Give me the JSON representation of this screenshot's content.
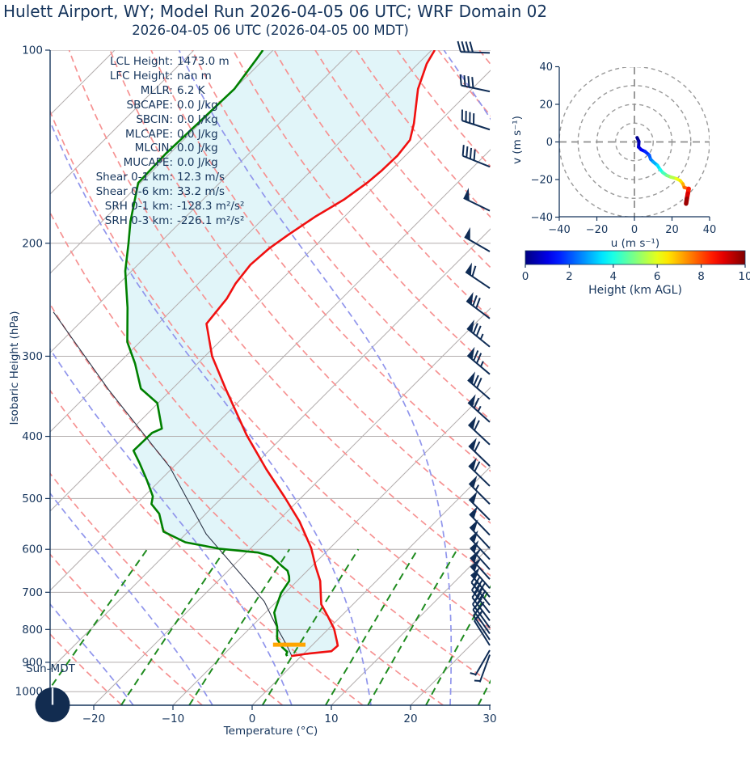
{
  "title": "Hulett Airport, WY; Model Run 2026-04-05 06 UTC; WRF Domain 02",
  "subtitle": "2026-04-05 06 UTC  (2026-04-05 00 MDT)",
  "sun_dial": {
    "label": "Sun-MDT",
    "hand_angle_deg": 0
  },
  "colors": {
    "text_navy": "#16355c",
    "barb_navy": "#0f2c55",
    "temperature": "#f01010",
    "dewpoint": "#008000",
    "parcel": "#2b3345",
    "fill_between": "rgba(175,228,238,0.38)",
    "isotherm_gray": "#b3aeae",
    "dry_adiabat": "#f69292",
    "moist_adiabat": "#9095ec",
    "mixing_ratio": "#1f8b1f",
    "lcl_marker": "#ffa500",
    "hodo_ring": "#9a9a9a",
    "sun_circle": "#122c50"
  },
  "chart_data": [
    {
      "type": "skewt-logp",
      "xlabel": "Temperature (°C)",
      "ylabel": "Isobaric Height (hPa)",
      "xlim": [
        -25.6,
        30
      ],
      "pressure_lim": [
        100,
        1050
      ],
      "xticks": [
        -20,
        -10,
        0,
        10,
        20,
        30
      ],
      "yticks": [
        100,
        200,
        300,
        400,
        500,
        600,
        700,
        800,
        900,
        1000
      ],
      "grid": true,
      "isotherms_degC": {
        "from": -120,
        "to": 40,
        "step": 10
      },
      "dry_adiabats_thetaC": {
        "from": -30,
        "to": 160,
        "step": 10
      },
      "moist_adiabats_startC": {
        "from": -45,
        "to": 45,
        "step": 10
      },
      "mixing_ratios_gkg": [
        0.4,
        1,
        2,
        4,
        7,
        10,
        16,
        24,
        32
      ],
      "mixing_ratio_top_hPa": 600,
      "temperature_profile_p_T": [
        [
          100,
          -59.6
        ],
        [
          105,
          -58.9
        ],
        [
          115,
          -56.8
        ],
        [
          130,
          -53.0
        ],
        [
          138,
          -51.4
        ],
        [
          146,
          -51.0
        ],
        [
          154,
          -51.1
        ],
        [
          161,
          -51.4
        ],
        [
          171,
          -52.2
        ],
        [
          182,
          -53.7
        ],
        [
          194,
          -54.8
        ],
        [
          204,
          -55.5
        ],
        [
          216,
          -55.8
        ],
        [
          231,
          -55.3
        ],
        [
          244,
          -54.5
        ],
        [
          267,
          -53.9
        ],
        [
          300,
          -49.1
        ],
        [
          337,
          -43.3
        ],
        [
          398,
          -34.8
        ],
        [
          450,
          -28.0
        ],
        [
          498,
          -22.1
        ],
        [
          543,
          -17.2
        ],
        [
          597,
          -12.4
        ],
        [
          638,
          -9.5
        ],
        [
          672,
          -7.1
        ],
        [
          731,
          -4.0
        ],
        [
          764,
          -1.6
        ],
        [
          798,
          0.7
        ],
        [
          836,
          2.7
        ],
        [
          848,
          3.3
        ],
        [
          865,
          3.2
        ],
        [
          873,
          0.4
        ],
        [
          880,
          -1.3
        ]
      ],
      "dewpoint_profile_p_Td": [
        [
          100,
          -81.3
        ],
        [
          103,
          -81.0
        ],
        [
          115,
          -80.0
        ],
        [
          145,
          -80.5
        ],
        [
          161,
          -80.3
        ],
        [
          185,
          -76.4
        ],
        [
          200,
          -73.9
        ],
        [
          221,
          -70.8
        ],
        [
          252,
          -65.9
        ],
        [
          285,
          -61.6
        ],
        [
          308,
          -57.9
        ],
        [
          337,
          -54.0
        ],
        [
          355,
          -50.1
        ],
        [
          389,
          -46.3
        ],
        [
          395,
          -47.0
        ],
        [
          421,
          -47.1
        ],
        [
          440,
          -44.8
        ],
        [
          468,
          -41.7
        ],
        [
          496,
          -38.9
        ],
        [
          510,
          -38.1
        ],
        [
          528,
          -35.9
        ],
        [
          563,
          -33.1
        ],
        [
          585,
          -29.0
        ],
        [
          599,
          -23.8
        ],
        [
          607,
          -18.5
        ],
        [
          615,
          -16.4
        ],
        [
          638,
          -13.7
        ],
        [
          648,
          -12.5
        ],
        [
          661,
          -11.6
        ],
        [
          672,
          -11.0
        ],
        [
          702,
          -10.5
        ],
        [
          753,
          -8.9
        ],
        [
          793,
          -6.7
        ],
        [
          828,
          -5.2
        ],
        [
          853,
          -3.5
        ],
        [
          867,
          -2.3
        ],
        [
          875,
          -2.1
        ],
        [
          880,
          -1.8
        ]
      ],
      "parcel_profile_p_T": [
        [
          880,
          -1.2
        ],
        [
          845,
          -3.3
        ],
        [
          800,
          -6.3
        ],
        [
          723,
          -11.6
        ],
        [
          568,
          -27.4
        ],
        [
          447,
          -40.4
        ],
        [
          338,
          -58.0
        ],
        [
          256,
          -74.7
        ]
      ],
      "lcl_marker": {
        "pressure_hPa": 845,
        "t_from": -5.0,
        "t_to": -0.9
      },
      "wind_barbs_p_spd_dir": [
        [
          101,
          20,
          272
        ],
        [
          116,
          22,
          282
        ],
        [
          133,
          22,
          288
        ],
        [
          152,
          22,
          292
        ],
        [
          178,
          25,
          296
        ],
        [
          206,
          25,
          300
        ],
        [
          235,
          32,
          304
        ],
        [
          262,
          37,
          307
        ],
        [
          290,
          38,
          309
        ],
        [
          320,
          38,
          310
        ],
        [
          350,
          35,
          311
        ],
        [
          380,
          33,
          312
        ],
        [
          412,
          32,
          313
        ],
        [
          445,
          30,
          314
        ],
        [
          478,
          30,
          314
        ],
        [
          510,
          28,
          315
        ],
        [
          540,
          27,
          315
        ],
        [
          570,
          27,
          316
        ],
        [
          598,
          26,
          317
        ],
        [
          622,
          27,
          317
        ],
        [
          645,
          28,
          318
        ],
        [
          668,
          28,
          318
        ],
        [
          690,
          27,
          319
        ],
        [
          712,
          25,
          320
        ],
        [
          733,
          22,
          321
        ],
        [
          754,
          20,
          322
        ],
        [
          775,
          17,
          323
        ],
        [
          795,
          15,
          324
        ],
        [
          812,
          12,
          325
        ],
        [
          830,
          10,
          326
        ],
        [
          847,
          7,
          328
        ],
        [
          862,
          4,
          210
        ],
        [
          876,
          3,
          200
        ]
      ],
      "indices": [
        {
          "label": "LCL Height:",
          "value": "1473.0 m"
        },
        {
          "label": "LFC Height:",
          "value": "nan m"
        },
        {
          "label": "MLLR:",
          "value": "6.2 K"
        },
        {
          "label": "SBCAPE:",
          "value": "0.0 J/kg"
        },
        {
          "label": "SBCIN:",
          "value": "0.0 J/kg"
        },
        {
          "label": "MLCAPE:",
          "value": "0.0 J/kg"
        },
        {
          "label": "MLCIN:",
          "value": "0.0 J/kg"
        },
        {
          "label": "MUCAPE:",
          "value": "0.0 J/kg"
        },
        {
          "label": "Shear 0-1 km:",
          "value": "12.3 m/s"
        },
        {
          "label": "Shear 0-6 km:",
          "value": "33.2 m/s"
        },
        {
          "label": "SRH 0-1 km:",
          "value": "-128.3 m²/s²"
        },
        {
          "label": "SRH 0-3 km:",
          "value": "-226.1 m²/s²"
        }
      ]
    },
    {
      "type": "hodograph",
      "xlabel": "u (m s⁻¹)",
      "ylabel": "v (m s⁻¹)",
      "xlim": [
        -40,
        40
      ],
      "ylim": [
        -40,
        40
      ],
      "xticks": [
        -40,
        -20,
        0,
        20,
        40
      ],
      "yticks": [
        -40,
        -20,
        0,
        20,
        40
      ],
      "ring_radii": [
        10,
        20,
        30,
        40
      ],
      "trace_u_v_heightkm": [
        [
          1.4,
          2.3,
          0.0
        ],
        [
          2.4,
          0.2,
          0.3
        ],
        [
          2.2,
          -2.7,
          0.7
        ],
        [
          3.6,
          -4.1,
          1.0
        ],
        [
          5.7,
          -5.1,
          1.4
        ],
        [
          7.9,
          -7.0,
          1.9
        ],
        [
          8.6,
          -9.2,
          2.3
        ],
        [
          10.0,
          -10.6,
          2.7
        ],
        [
          12.2,
          -12.4,
          3.2
        ],
        [
          13.6,
          -14.6,
          3.7
        ],
        [
          15.1,
          -16.3,
          4.2
        ],
        [
          17.2,
          -17.8,
          4.7
        ],
        [
          19.4,
          -18.7,
          5.2
        ],
        [
          22.2,
          -19.5,
          5.8
        ],
        [
          24.4,
          -20.6,
          6.3
        ],
        [
          25.8,
          -22.3,
          6.8
        ],
        [
          26.5,
          -24.2,
          7.3
        ],
        [
          28.9,
          -24.9,
          8.2
        ],
        [
          28.4,
          -27.5,
          8.8
        ],
        [
          27.9,
          -30.2,
          9.4
        ],
        [
          27.5,
          -32.8,
          10.0
        ]
      ]
    },
    {
      "type": "colorbar",
      "label": "Height (km AGL)",
      "colormap": "jet",
      "range": [
        0,
        10
      ],
      "ticks": [
        0,
        2,
        4,
        6,
        8,
        10
      ]
    }
  ]
}
